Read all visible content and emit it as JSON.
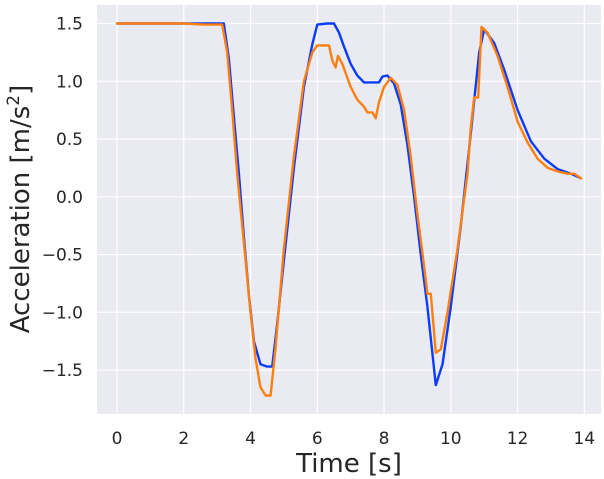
{
  "chart_data": {
    "type": "line",
    "xlabel": "Time [s]",
    "ylabel_base": "Acceleration [m/s",
    "ylabel_sup": "2",
    "ylabel_close": "]",
    "xlim": [
      -0.6,
      14.5
    ],
    "ylim": [
      -1.88,
      1.66
    ],
    "xticks": [
      0,
      2,
      4,
      6,
      8,
      10,
      12,
      14
    ],
    "yticks": [
      -1.5,
      -1.0,
      -0.5,
      0.0,
      0.5,
      1.0,
      1.5
    ],
    "ytick_labels": [
      "−1.5",
      "−1.0",
      "−0.5",
      "0.0",
      "0.5",
      "1.0",
      "1.5"
    ],
    "grid": true,
    "legend": "none",
    "colors": {
      "background": "#eaeaf2",
      "grid": "#ffffff",
      "text": "#262626"
    },
    "series": [
      {
        "color": "#0a3cff",
        "points": [
          [
            0,
            1.5
          ],
          [
            1,
            1.5
          ],
          [
            2,
            1.5
          ],
          [
            3.0,
            1.5
          ],
          [
            3.2,
            1.5
          ],
          [
            3.35,
            1.2
          ],
          [
            3.5,
            0.7
          ],
          [
            3.65,
            0.2
          ],
          [
            3.8,
            -0.35
          ],
          [
            3.95,
            -0.85
          ],
          [
            4.1,
            -1.25
          ],
          [
            4.3,
            -1.45
          ],
          [
            4.5,
            -1.47
          ],
          [
            4.65,
            -1.47
          ],
          [
            4.8,
            -1.1
          ],
          [
            5.0,
            -0.55
          ],
          [
            5.3,
            0.25
          ],
          [
            5.6,
            0.95
          ],
          [
            5.85,
            1.32
          ],
          [
            6.0,
            1.49
          ],
          [
            6.3,
            1.5
          ],
          [
            6.5,
            1.5
          ],
          [
            6.65,
            1.42
          ],
          [
            6.8,
            1.3
          ],
          [
            7.0,
            1.15
          ],
          [
            7.2,
            1.05
          ],
          [
            7.4,
            0.99
          ],
          [
            7.7,
            0.99
          ],
          [
            7.85,
            0.99
          ],
          [
            7.95,
            1.04
          ],
          [
            8.1,
            1.05
          ],
          [
            8.3,
            0.98
          ],
          [
            8.5,
            0.8
          ],
          [
            8.7,
            0.45
          ],
          [
            8.9,
            0.0
          ],
          [
            9.1,
            -0.5
          ],
          [
            9.3,
            -0.95
          ],
          [
            9.55,
            -1.63
          ],
          [
            9.75,
            -1.45
          ],
          [
            10.0,
            -0.95
          ],
          [
            10.3,
            -0.25
          ],
          [
            10.6,
            0.55
          ],
          [
            10.85,
            1.25
          ],
          [
            11.0,
            1.45
          ],
          [
            11.3,
            1.33
          ],
          [
            11.6,
            1.1
          ],
          [
            12.0,
            0.75
          ],
          [
            12.4,
            0.48
          ],
          [
            12.8,
            0.33
          ],
          [
            13.2,
            0.24
          ],
          [
            13.6,
            0.2
          ],
          [
            13.9,
            0.16
          ]
        ]
      },
      {
        "color": "#ff7f0e",
        "points": [
          [
            0,
            1.5
          ],
          [
            1,
            1.5
          ],
          [
            2,
            1.5
          ],
          [
            2.6,
            1.49
          ],
          [
            3.0,
            1.49
          ],
          [
            3.15,
            1.49
          ],
          [
            3.3,
            1.25
          ],
          [
            3.45,
            0.75
          ],
          [
            3.6,
            0.2
          ],
          [
            3.8,
            -0.4
          ],
          [
            4.0,
            -1.0
          ],
          [
            4.15,
            -1.4
          ],
          [
            4.3,
            -1.65
          ],
          [
            4.45,
            -1.72
          ],
          [
            4.6,
            -1.72
          ],
          [
            4.75,
            -1.3
          ],
          [
            5.0,
            -0.45
          ],
          [
            5.3,
            0.35
          ],
          [
            5.6,
            1.0
          ],
          [
            5.85,
            1.25
          ],
          [
            6.0,
            1.31
          ],
          [
            6.2,
            1.31
          ],
          [
            6.35,
            1.31
          ],
          [
            6.45,
            1.18
          ],
          [
            6.55,
            1.12
          ],
          [
            6.62,
            1.22
          ],
          [
            6.75,
            1.15
          ],
          [
            7.0,
            0.95
          ],
          [
            7.2,
            0.84
          ],
          [
            7.4,
            0.78
          ],
          [
            7.5,
            0.73
          ],
          [
            7.65,
            0.73
          ],
          [
            7.75,
            0.68
          ],
          [
            7.85,
            0.82
          ],
          [
            8.0,
            0.95
          ],
          [
            8.2,
            1.03
          ],
          [
            8.4,
            0.97
          ],
          [
            8.6,
            0.75
          ],
          [
            8.8,
            0.35
          ],
          [
            9.0,
            -0.15
          ],
          [
            9.2,
            -0.6
          ],
          [
            9.3,
            -0.84
          ],
          [
            9.4,
            -0.84
          ],
          [
            9.55,
            -1.35
          ],
          [
            9.7,
            -1.32
          ],
          [
            9.9,
            -1.0
          ],
          [
            10.2,
            -0.45
          ],
          [
            10.5,
            0.2
          ],
          [
            10.6,
            0.6
          ],
          [
            10.7,
            0.86
          ],
          [
            10.82,
            0.86
          ],
          [
            10.92,
            1.47
          ],
          [
            11.1,
            1.42
          ],
          [
            11.4,
            1.22
          ],
          [
            11.7,
            0.95
          ],
          [
            12.0,
            0.65
          ],
          [
            12.3,
            0.47
          ],
          [
            12.6,
            0.33
          ],
          [
            12.9,
            0.25
          ],
          [
            13.2,
            0.22
          ],
          [
            13.5,
            0.2
          ],
          [
            13.7,
            0.2
          ],
          [
            13.9,
            0.16
          ]
        ]
      }
    ]
  }
}
